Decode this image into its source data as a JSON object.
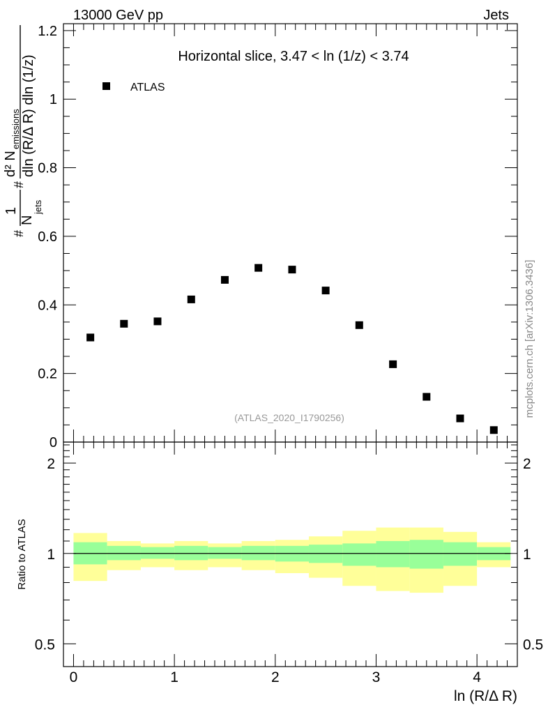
{
  "header": {
    "left": "13000 GeV pp",
    "right": "Jets"
  },
  "side_label": "mcplots.cern.ch [arXiv:1306.3436]",
  "chart_data": {
    "type": "scatter",
    "title": "Horizontal slice, 3.47 < ln (1/z) < 3.74",
    "watermark": "(ATLAS_2020_I1790256)",
    "xlabel": "ln (R/Δ R)",
    "ylabel": {
      "prefix": "#",
      "frac_num": "1",
      "frac_den": "N",
      "frac_den_sub": "jets",
      "hash2": "#",
      "d2_num": "d² N",
      "d2_num_sub": "emissions",
      "d2_den": "dln (R/Δ R) dln (1/z)"
    },
    "xlim": [
      -0.1,
      4.4
    ],
    "ylim": [
      0,
      1.22
    ],
    "x_ticks": [
      "0",
      "1",
      "2",
      "3",
      "4"
    ],
    "y_ticks": [
      "0.2",
      "0.4",
      "0.6",
      "0.8",
      "1",
      "1.2"
    ],
    "y_zero_tick": "0",
    "legend": {
      "label": "ATLAS",
      "position": "top-left"
    },
    "bin_edges": [
      0,
      0.333,
      0.667,
      1.0,
      1.333,
      1.667,
      2.0,
      2.333,
      2.667,
      3.0,
      3.333,
      3.667,
      4.0,
      4.333
    ],
    "series": [
      {
        "name": "ATLAS",
        "x": [
          0.167,
          0.5,
          0.833,
          1.167,
          1.5,
          1.833,
          2.167,
          2.5,
          2.833,
          3.167,
          3.5,
          3.833,
          4.167
        ],
        "y": [
          0.305,
          0.345,
          0.352,
          0.416,
          0.473,
          0.508,
          0.503,
          0.442,
          0.341,
          0.227,
          0.132,
          0.069,
          0.035
        ]
      }
    ],
    "ratio": {
      "ylabel": "Ratio to ATLAS",
      "scale": "log",
      "ylim": [
        0.42,
        2.35
      ],
      "ticks": [
        {
          "value": 0.5,
          "label": "0.5"
        },
        {
          "value": 1,
          "label": "1"
        },
        {
          "value": 2,
          "label": "2"
        }
      ],
      "inner_band": {
        "color": "#99ff99",
        "low": [
          0.92,
          0.95,
          0.96,
          0.95,
          0.96,
          0.95,
          0.94,
          0.93,
          0.91,
          0.9,
          0.89,
          0.91,
          0.95
        ],
        "high": [
          1.09,
          1.06,
          1.05,
          1.06,
          1.05,
          1.06,
          1.06,
          1.07,
          1.08,
          1.1,
          1.11,
          1.09,
          1.05
        ]
      },
      "outer_band": {
        "color": "#ffff99",
        "low": [
          0.81,
          0.88,
          0.9,
          0.88,
          0.9,
          0.88,
          0.86,
          0.83,
          0.78,
          0.75,
          0.74,
          0.78,
          0.9
        ],
        "high": [
          1.17,
          1.1,
          1.08,
          1.1,
          1.08,
          1.1,
          1.11,
          1.14,
          1.19,
          1.22,
          1.22,
          1.18,
          1.09
        ]
      }
    }
  }
}
